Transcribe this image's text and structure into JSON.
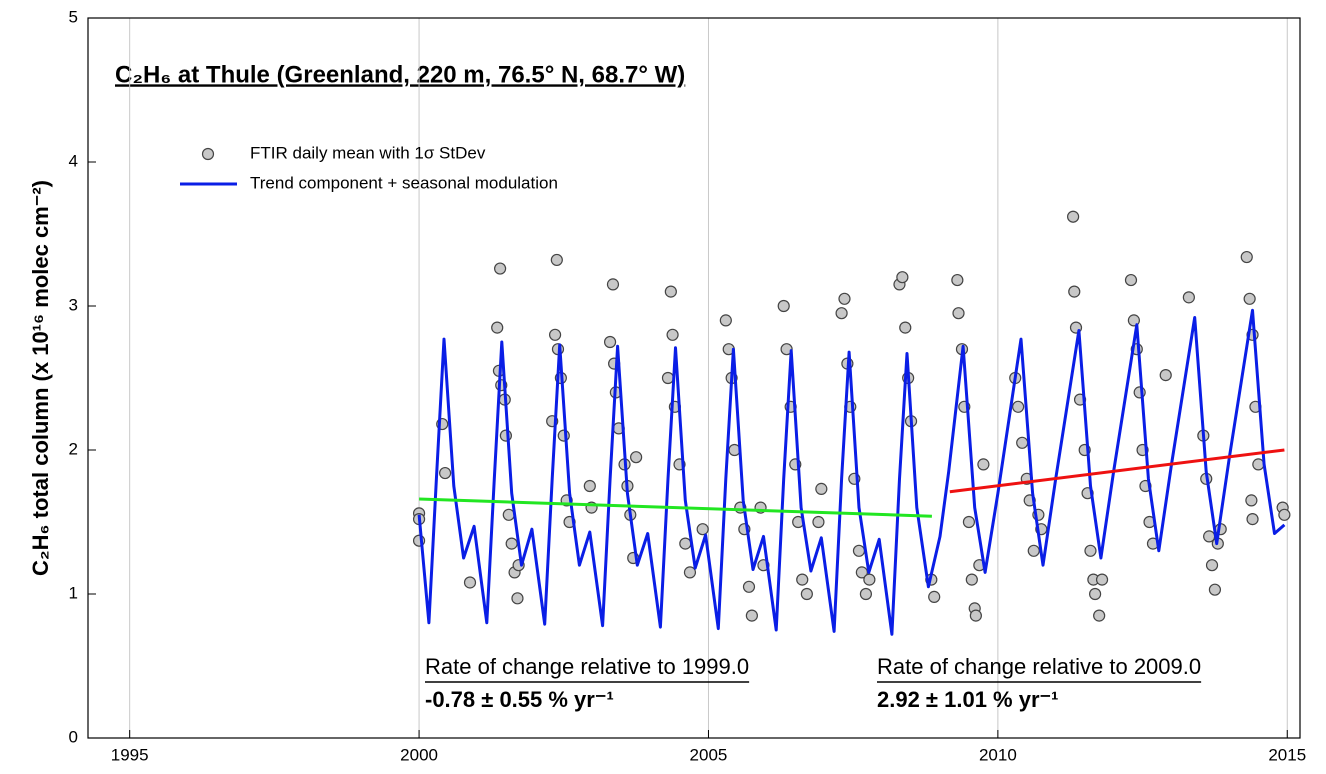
{
  "chart_data": {
    "type": "scatter",
    "title": "C₂H₆ at Thule (Greenland, 220 m, 76.5° N, 68.7° W)",
    "y_label": "C₂H₆ total column (x 10¹⁶ molec cm⁻²)",
    "xlim": [
      1994.28,
      2015.22
    ],
    "xticks": [
      1995,
      2000,
      2005,
      2010,
      2015
    ],
    "ylim": [
      0,
      5
    ],
    "yticks": [
      0,
      1,
      2,
      3,
      4,
      5
    ],
    "xgrid": true,
    "legend": "upper left",
    "series": [
      {
        "name": "FTIR daily mean with 1σ StDev",
        "style": "markers",
        "color": "#444444",
        "x": [
          2000.0,
          2000.0,
          2000.0,
          2000.4,
          2000.45,
          2000.88,
          2001.35,
          2001.38,
          2001.4,
          2001.42,
          2001.48,
          2001.5,
          2001.55,
          2001.6,
          2001.65,
          2001.7,
          2001.72,
          2002.3,
          2002.35,
          2002.38,
          2002.4,
          2002.45,
          2002.5,
          2002.55,
          2002.6,
          2002.95,
          2002.98,
          2003.3,
          2003.35,
          2003.37,
          2003.4,
          2003.45,
          2003.55,
          2003.6,
          2003.65,
          2003.7,
          2003.75,
          2004.3,
          2004.35,
          2004.38,
          2004.42,
          2004.5,
          2004.6,
          2004.68,
          2004.9,
          2005.3,
          2005.35,
          2005.4,
          2005.45,
          2005.55,
          2005.62,
          2005.7,
          2005.75,
          2005.9,
          2005.95,
          2006.3,
          2006.35,
          2006.42,
          2006.5,
          2006.55,
          2006.62,
          2006.7,
          2006.9,
          2006.95,
          2007.3,
          2007.35,
          2007.4,
          2007.45,
          2007.52,
          2007.6,
          2007.65,
          2007.72,
          2007.78,
          2008.3,
          2008.35,
          2008.4,
          2008.45,
          2008.5,
          2008.85,
          2008.9,
          2009.3,
          2009.32,
          2009.38,
          2009.42,
          2009.5,
          2009.55,
          2009.6,
          2009.62,
          2009.68,
          2009.75,
          2010.3,
          2010.35,
          2010.42,
          2010.5,
          2010.55,
          2010.62,
          2010.7,
          2010.75,
          2011.3,
          2011.32,
          2011.35,
          2011.42,
          2011.5,
          2011.55,
          2011.6,
          2011.65,
          2011.68,
          2011.75,
          2011.8,
          2012.3,
          2012.35,
          2012.4,
          2012.45,
          2012.5,
          2012.55,
          2012.62,
          2012.68,
          2012.9,
          2013.3,
          2013.55,
          2013.6,
          2013.65,
          2013.7,
          2013.75,
          2013.8,
          2013.85,
          2014.3,
          2014.35,
          2014.38,
          2014.4,
          2014.4,
          2014.45,
          2014.5,
          2014.92,
          2014.95
        ],
        "values": [
          1.56,
          1.52,
          1.37,
          2.18,
          1.84,
          1.08,
          2.85,
          2.55,
          3.26,
          2.45,
          2.35,
          2.1,
          1.55,
          1.35,
          1.15,
          0.97,
          1.2,
          2.2,
          2.8,
          3.32,
          2.7,
          2.5,
          2.1,
          1.65,
          1.5,
          1.75,
          1.6,
          2.75,
          3.15,
          2.6,
          2.4,
          2.15,
          1.9,
          1.75,
          1.55,
          1.25,
          1.95,
          2.5,
          3.1,
          2.8,
          2.3,
          1.9,
          1.35,
          1.15,
          1.45,
          2.9,
          2.7,
          2.5,
          2.0,
          1.6,
          1.45,
          1.05,
          0.85,
          1.6,
          1.2,
          3.0,
          2.7,
          2.3,
          1.9,
          1.5,
          1.1,
          1.0,
          1.5,
          1.73,
          2.95,
          3.05,
          2.6,
          2.3,
          1.8,
          1.3,
          1.15,
          1.0,
          1.1,
          3.15,
          3.2,
          2.85,
          2.5,
          2.2,
          1.1,
          0.98,
          3.18,
          2.95,
          2.7,
          2.3,
          1.5,
          1.1,
          0.9,
          0.85,
          1.2,
          1.9,
          2.5,
          2.3,
          2.05,
          1.8,
          1.65,
          1.3,
          1.55,
          1.45,
          3.62,
          3.1,
          2.85,
          2.35,
          2.0,
          1.7,
          1.3,
          1.1,
          1.0,
          0.85,
          1.1,
          3.18,
          2.9,
          2.7,
          2.4,
          2.0,
          1.75,
          1.5,
          1.35,
          2.52,
          3.06,
          2.1,
          1.8,
          1.4,
          1.2,
          1.03,
          1.35,
          1.45,
          3.34,
          3.05,
          1.65,
          2.8,
          1.52,
          2.3,
          1.9,
          1.6,
          1.55
        ]
      },
      {
        "name": "Trend component + seasonal modulation",
        "style": "line",
        "color": "#0a1ee6",
        "x": [
          2000.0,
          2000.17,
          2000.3,
          2000.43,
          2000.6,
          2000.77,
          2000.95,
          2001.17,
          2001.3,
          2001.43,
          2001.6,
          2001.77,
          2001.95,
          2002.17,
          2002.3,
          2002.43,
          2002.6,
          2002.77,
          2002.95,
          2003.17,
          2003.3,
          2003.43,
          2003.6,
          2003.77,
          2003.95,
          2004.17,
          2004.3,
          2004.43,
          2004.6,
          2004.77,
          2004.95,
          2005.17,
          2005.3,
          2005.43,
          2005.6,
          2005.77,
          2005.95,
          2006.17,
          2006.3,
          2006.43,
          2006.6,
          2006.77,
          2006.95,
          2007.17,
          2007.3,
          2007.43,
          2007.6,
          2007.77,
          2007.95,
          2008.17,
          2008.3,
          2008.43,
          2008.6,
          2008.8,
          2009.0,
          2009.15,
          2009.4,
          2009.6,
          2009.78,
          2010.0,
          2010.4,
          2010.6,
          2010.78,
          2011.0,
          2011.4,
          2011.6,
          2011.78,
          2012.0,
          2012.4,
          2012.6,
          2012.78,
          2013.0,
          2013.4,
          2013.6,
          2013.78,
          2014.0,
          2014.4,
          2014.6,
          2014.78,
          2014.95
        ],
        "values": [
          1.55,
          0.8,
          1.8,
          2.77,
          1.75,
          1.25,
          1.47,
          0.8,
          1.8,
          2.75,
          1.7,
          1.2,
          1.45,
          0.79,
          1.8,
          2.73,
          1.7,
          1.2,
          1.43,
          0.78,
          1.8,
          2.72,
          1.7,
          1.2,
          1.42,
          0.77,
          1.8,
          2.71,
          1.65,
          1.18,
          1.41,
          0.76,
          1.8,
          2.7,
          1.65,
          1.17,
          1.4,
          0.75,
          1.8,
          2.69,
          1.6,
          1.16,
          1.39,
          0.74,
          1.8,
          2.68,
          1.6,
          1.15,
          1.38,
          0.72,
          1.8,
          2.67,
          1.6,
          1.05,
          1.4,
          1.85,
          2.72,
          1.6,
          1.15,
          1.7,
          2.77,
          1.7,
          1.2,
          1.8,
          2.83,
          1.75,
          1.25,
          1.85,
          2.87,
          1.8,
          1.3,
          1.9,
          2.92,
          1.85,
          1.35,
          1.95,
          2.97,
          1.9,
          1.42,
          1.48
        ]
      },
      {
        "style": "line",
        "color": "#22e622",
        "x": [
          2000.0,
          2008.86
        ],
        "values": [
          1.66,
          1.54
        ]
      },
      {
        "style": "line",
        "color": "#ee1111",
        "x": [
          2009.17,
          2014.95
        ],
        "values": [
          1.71,
          2.0
        ]
      }
    ],
    "annotations": [
      {
        "text": "Rate of change relative to 1999.0",
        "color": "#000000",
        "underline": true,
        "bold": false
      },
      {
        "text": "-0.78 ± 0.55 % yr⁻¹",
        "color": "#2a8a1a",
        "underline": false,
        "bold": true
      },
      {
        "text": "Rate of change relative to 2009.0",
        "color": "#000000",
        "underline": true,
        "bold": false
      },
      {
        "text": "2.92 ± 1.01 % yr⁻¹",
        "color": "#ee1111",
        "underline": false,
        "bold": true
      }
    ]
  }
}
